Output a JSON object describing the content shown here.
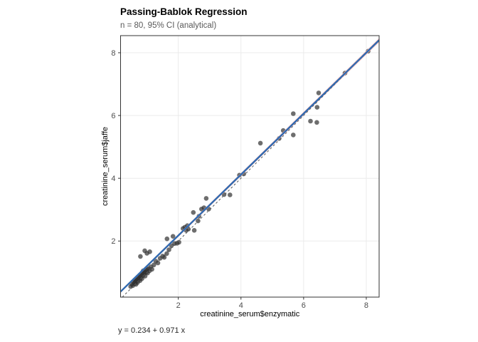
{
  "figure": {
    "title": "Passing-Bablok Regression",
    "subtitle": "n = 80, 95% CI (analytical)",
    "caption": "y = 0.234 + 0.971 x"
  },
  "chart_data": {
    "type": "scatter",
    "title": "Passing-Bablok Regression",
    "subtitle": "n = 80, 95% CI (analytical)",
    "equation_label": "y = 0.234 + 0.971 x",
    "n": 80,
    "xlabel": "creatinine_serum$enzymatic",
    "ylabel": "creatinine_serum$jaffe",
    "xlim": [
      0.157,
      8.41
    ],
    "ylim": [
      0.213,
      8.545
    ],
    "x_ticks": [
      2,
      4,
      6,
      8
    ],
    "y_ticks": [
      2,
      4,
      6,
      8
    ],
    "grid": "major-only",
    "legend": "none",
    "regression": {
      "intercept": 0.234,
      "slope": 0.971
    },
    "ci": {
      "level": "95%",
      "method": "analytical",
      "upper": {
        "intercept": 0.27,
        "slope": 0.974
      },
      "lower": {
        "intercept": 0.198,
        "slope": 0.968
      }
    },
    "identity_line": {
      "intercept": 0,
      "slope": 1,
      "style": "dashed"
    },
    "colors": {
      "regression_line": "#2c6bb2",
      "ci_band": "#f4a9a9",
      "identity_line": "#595959",
      "point": "#303030",
      "grid": "#ebebeb",
      "panel_border": "#333333",
      "tick_label": "#4d4d4d",
      "axis_title": "#000000",
      "subtitle": "#595959",
      "background": "#ffffff"
    },
    "points": [
      [
        0.48,
        0.55
      ],
      [
        0.52,
        0.62
      ],
      [
        0.55,
        0.58
      ],
      [
        0.57,
        0.68
      ],
      [
        0.6,
        0.64
      ],
      [
        0.6,
        0.75
      ],
      [
        0.63,
        0.7
      ],
      [
        0.65,
        0.62
      ],
      [
        0.65,
        0.78
      ],
      [
        0.68,
        0.73
      ],
      [
        0.7,
        0.8
      ],
      [
        0.7,
        0.68
      ],
      [
        0.72,
        0.85
      ],
      [
        0.74,
        0.78
      ],
      [
        0.76,
        0.88
      ],
      [
        0.78,
        0.74
      ],
      [
        0.78,
        0.92
      ],
      [
        0.8,
        0.84
      ],
      [
        0.82,
        0.95
      ],
      [
        0.84,
        0.8
      ],
      [
        0.85,
        1.0
      ],
      [
        0.87,
        0.9
      ],
      [
        0.88,
        1.05
      ],
      [
        0.9,
        0.96
      ],
      [
        0.92,
        1.02
      ],
      [
        0.94,
        0.88
      ],
      [
        0.95,
        1.08
      ],
      [
        0.97,
        1.0
      ],
      [
        1.0,
        1.1
      ],
      [
        1.02,
        0.98
      ],
      [
        1.05,
        1.12
      ],
      [
        1.08,
        1.05
      ],
      [
        1.12,
        1.18
      ],
      [
        1.16,
        1.1
      ],
      [
        1.22,
        1.24
      ],
      [
        1.28,
        1.36
      ],
      [
        1.35,
        1.3
      ],
      [
        1.42,
        1.45
      ],
      [
        1.5,
        1.52
      ],
      [
        1.55,
        1.48
      ],
      [
        1.63,
        1.6
      ],
      [
        1.7,
        1.72
      ],
      [
        1.78,
        1.85
      ],
      [
        1.88,
        1.92
      ],
      [
        1.96,
        1.93
      ],
      [
        0.79,
        1.51
      ],
      [
        0.93,
        1.69
      ],
      [
        1.0,
        1.61
      ],
      [
        1.09,
        1.66
      ],
      [
        1.64,
        2.07
      ],
      [
        1.83,
        2.15
      ],
      [
        2.02,
        1.96
      ],
      [
        2.15,
        2.4
      ],
      [
        2.21,
        2.44
      ],
      [
        2.25,
        2.34
      ],
      [
        2.29,
        2.49
      ],
      [
        2.32,
        2.38
      ],
      [
        2.48,
        2.91
      ],
      [
        2.51,
        2.34
      ],
      [
        2.63,
        2.64
      ],
      [
        2.66,
        2.79
      ],
      [
        2.74,
        3.02
      ],
      [
        2.82,
        3.06
      ],
      [
        2.89,
        3.36
      ],
      [
        2.97,
        3.02
      ],
      [
        3.46,
        3.48
      ],
      [
        3.65,
        3.47
      ],
      [
        3.95,
        4.1
      ],
      [
        4.09,
        4.14
      ],
      [
        4.62,
        5.12
      ],
      [
        5.22,
        5.27
      ],
      [
        5.35,
        5.52
      ],
      [
        5.67,
        5.38
      ],
      [
        5.67,
        6.06
      ],
      [
        6.22,
        5.82
      ],
      [
        6.42,
        5.78
      ],
      [
        6.43,
        6.26
      ],
      [
        6.48,
        6.72
      ],
      [
        7.32,
        7.35
      ],
      [
        8.06,
        8.05
      ]
    ]
  }
}
